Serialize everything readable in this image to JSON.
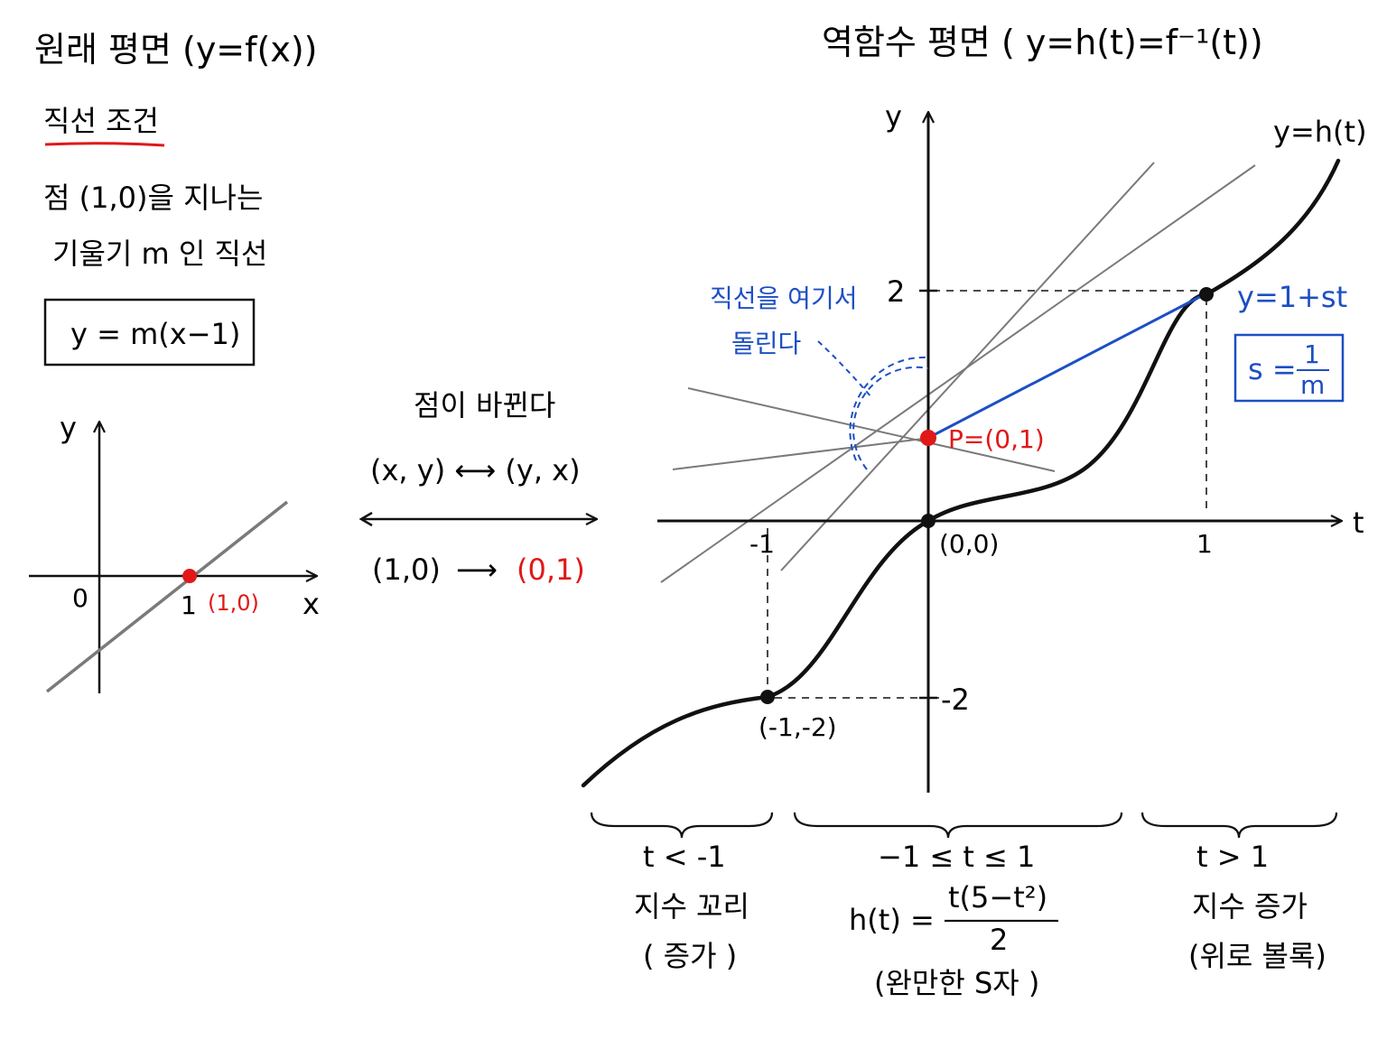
{
  "left_panel": {
    "title": "원래 평면 (y=f(x))",
    "condition_heading": "직선 조건",
    "condition_line1": "점 (1,0)을 지나는",
    "condition_line2": "기울기 m 인 직선",
    "equation": "y = m(x−1)",
    "axis_y": "y",
    "axis_x": "x",
    "origin": "0",
    "tick_1": "1",
    "point_label": "(1,0)"
  },
  "middle": {
    "heading": "점이 바뀐다",
    "swap": "(x, y) ⟷ (y, x)",
    "map_from": "(1,0)",
    "map_arrow": "⟶",
    "map_to": "(0,1)"
  },
  "right_panel": {
    "title": "역함수 평면 ( y=h(t)=f⁻¹(t))",
    "axis_y": "y",
    "axis_t": "t",
    "curve_label": "y=h(t)",
    "tick_2": "2",
    "tick_neg2": "-2",
    "tick_neg1": "-1",
    "tick_1": "1",
    "origin_label": "(0,0)",
    "point_neg": "(-1,-2)",
    "pivot_label": "P=(0,1)",
    "rotate_note_line1": "직선을 여기서",
    "rotate_note_line2": "돌린다",
    "line_label": "y=1+st",
    "s_label": "s =",
    "s_num": "1",
    "s_den": "m"
  },
  "regions": [
    {
      "condition": "t < -1",
      "line2": "지수 꼬리",
      "line3": "( 증가 )"
    },
    {
      "condition": "−1 ≤ t ≤ 1",
      "formula_lhs": "h(t) =",
      "formula_num": "t(5−t²)",
      "formula_den": "2",
      "line3": "(완만한 S자 )"
    },
    {
      "condition": "t > 1",
      "line2": "지수 증가",
      "line3": "(위로 볼록)"
    }
  ],
  "colors": {
    "accent_red": "#e01818",
    "accent_blue": "#1d4fc4",
    "grey_line": "#7a7a7a",
    "ink": "#111111"
  }
}
